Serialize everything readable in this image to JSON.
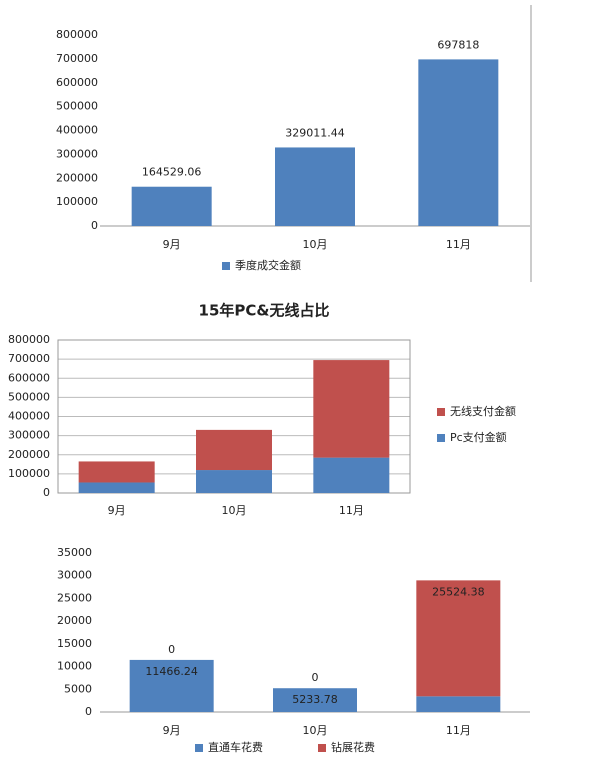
{
  "chart_data": [
    {
      "type": "bar",
      "categories": [
        "9月",
        "10月",
        "11月"
      ],
      "series": [
        {
          "name": "季度成交金额",
          "color": "#4f81bd",
          "values": [
            164529.06,
            329011.44,
            697818
          ]
        }
      ],
      "ylim": [
        0,
        800000
      ],
      "yticks": [
        0,
        100000,
        200000,
        300000,
        400000,
        500000,
        600000,
        700000,
        800000
      ],
      "grid": false,
      "legend": "bottom",
      "data_labels": "above"
    },
    {
      "type": "stacked_bar",
      "title": "15年PC&无线占比",
      "categories": [
        "9月",
        "10月",
        "11月"
      ],
      "series": [
        {
          "name": "Pc支付金额",
          "color": "#4f81bd",
          "values": [
            55000,
            120000,
            185000
          ]
        },
        {
          "name": "无线支付金额",
          "color": "#c0504d",
          "values": [
            110000,
            210000,
            510000
          ]
        }
      ],
      "ylim": [
        0,
        800000
      ],
      "yticks": [
        0,
        100000,
        200000,
        300000,
        400000,
        500000,
        600000,
        700000,
        800000
      ],
      "grid": true,
      "legend": "right",
      "data_labels": "none"
    },
    {
      "type": "stacked_bar",
      "categories": [
        "9月",
        "10月",
        "11月"
      ],
      "series": [
        {
          "name": "直通车花费",
          "color": "#4f81bd",
          "values": [
            11466.24,
            5233.78,
            3451
          ]
        },
        {
          "name": "钻展花费",
          "color": "#c0504d",
          "values": [
            0,
            0,
            25524.38
          ]
        }
      ],
      "ylim": [
        0,
        35000
      ],
      "yticks": [
        0,
        5000,
        10000,
        15000,
        20000,
        25000,
        30000,
        35000
      ],
      "grid": false,
      "legend": "bottom",
      "data_labels": "inside"
    }
  ]
}
